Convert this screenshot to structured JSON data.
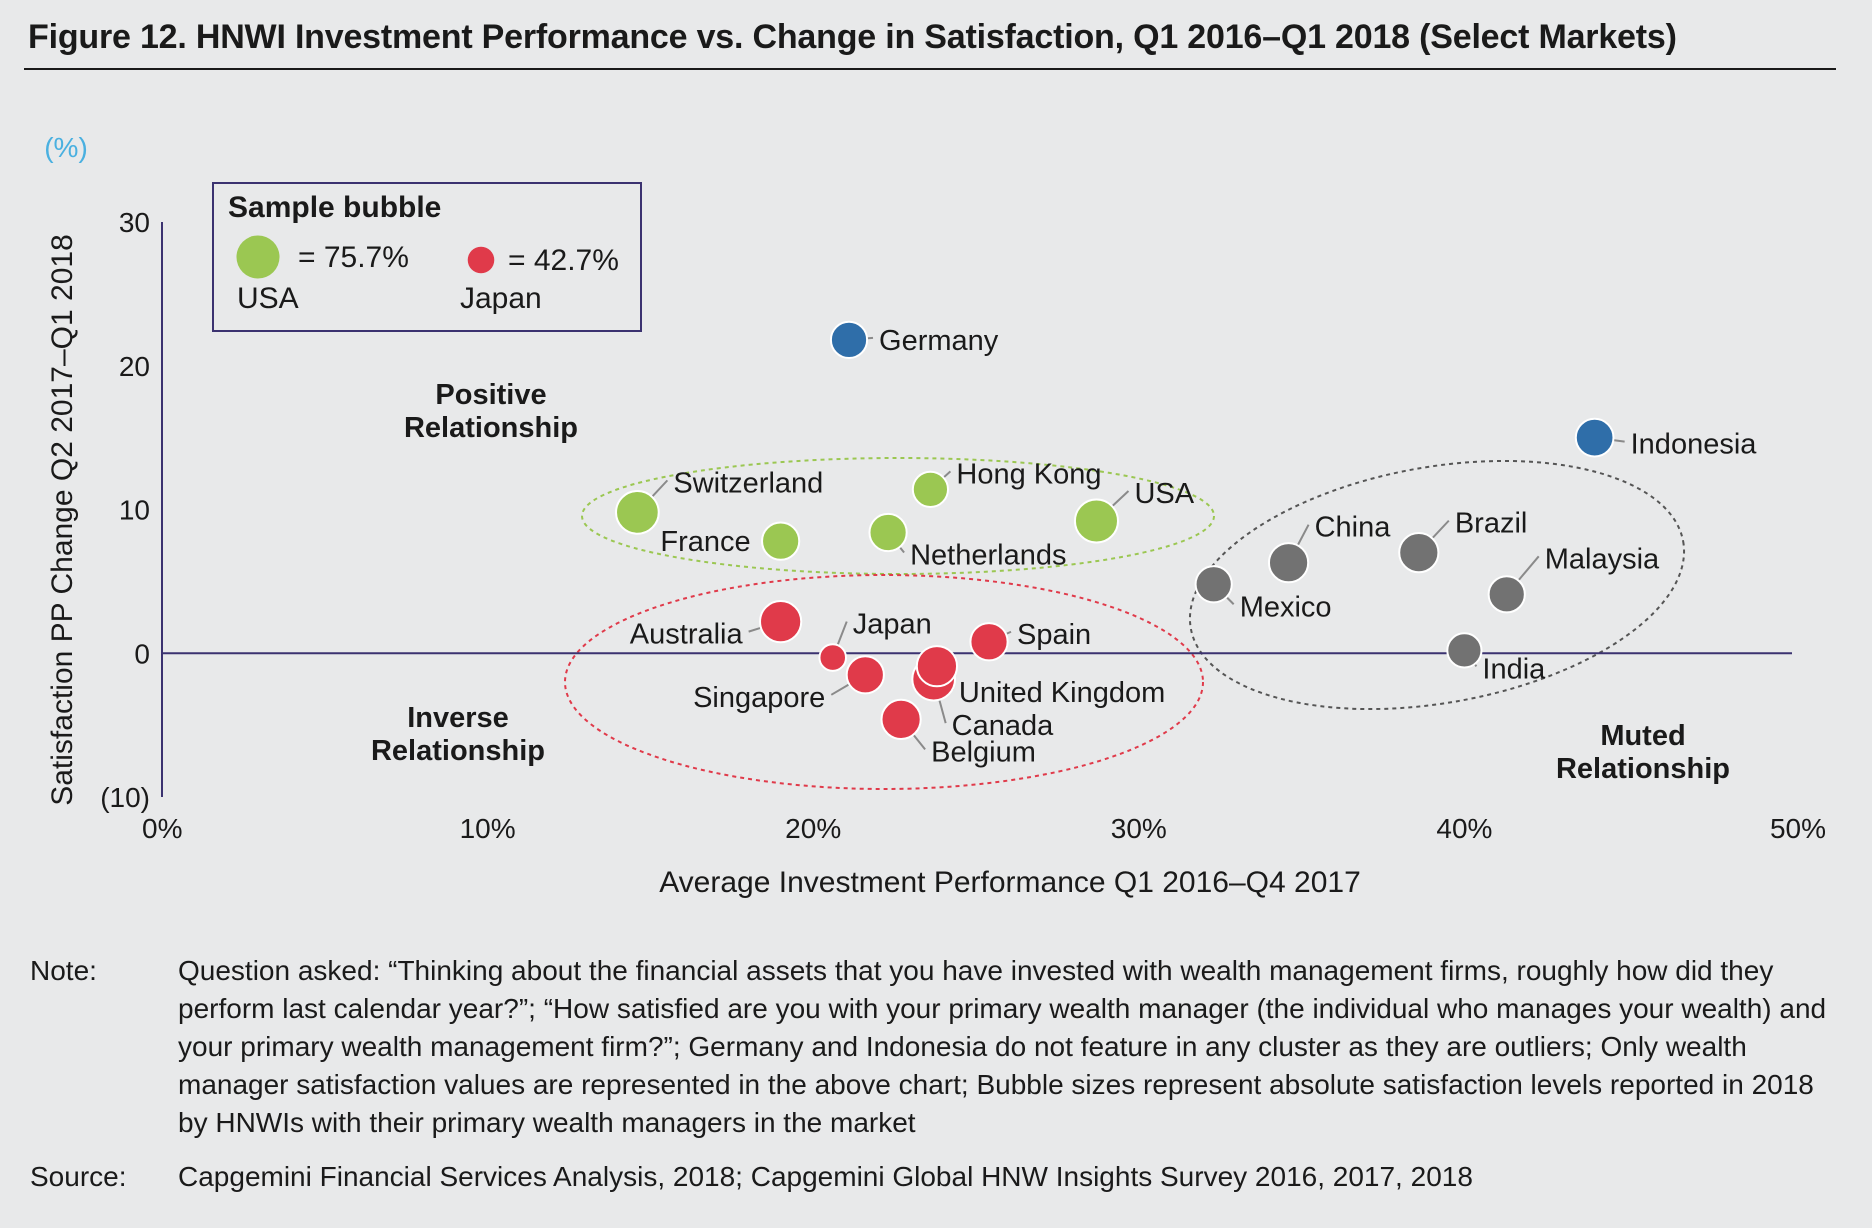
{
  "title": "Figure 12. HNWI Investment Performance vs. Change in Satisfaction, Q1 2016–Q1 2018 (Select Markets)",
  "chart_data": {
    "type": "scatter",
    "title": "Figure 12. HNWI Investment Performance vs. Change in Satisfaction, Q1 2016–Q1 2018 (Select Markets)",
    "xlabel": "Average Investment Performance Q1 2016–Q4 2017",
    "ylabel": "Satisfaction PP Change Q2 2017–Q1 2018",
    "y_unit": "(%)",
    "xlim": [
      0,
      50
    ],
    "ylim": [
      -10,
      30
    ],
    "x_ticks": [
      0,
      10,
      20,
      30,
      40,
      50
    ],
    "x_tick_labels": [
      "0%",
      "10%",
      "20%",
      "30%",
      "40%",
      "50%"
    ],
    "y_ticks": [
      -10,
      0,
      10,
      20,
      30
    ],
    "y_tick_labels": [
      "(10)",
      "0",
      "10",
      "20",
      "30"
    ],
    "grid": false,
    "colors": {
      "positive": "#9bc752",
      "inverse": "#e03a4a",
      "muted": "#727272",
      "outlier": "#2f6ea9"
    },
    "points": [
      {
        "name": "Germany",
        "x": 21.1,
        "y": 21.8,
        "size": 62,
        "group": "outlier"
      },
      {
        "name": "Indonesia",
        "x": 44.0,
        "y": 15.0,
        "size": 65,
        "group": "outlier"
      },
      {
        "name": "Switzerland",
        "x": 14.6,
        "y": 9.8,
        "size": 75,
        "group": "positive"
      },
      {
        "name": "France",
        "x": 19.0,
        "y": 7.8,
        "size": 64,
        "group": "positive"
      },
      {
        "name": "Hong Kong",
        "x": 23.6,
        "y": 11.4,
        "size": 60,
        "group": "positive"
      },
      {
        "name": "Netherlands",
        "x": 22.3,
        "y": 8.4,
        "size": 64,
        "group": "positive"
      },
      {
        "name": "USA",
        "x": 28.7,
        "y": 9.2,
        "size": 75.7,
        "group": "positive"
      },
      {
        "name": "Australia",
        "x": 19.0,
        "y": 2.2,
        "size": 72,
        "group": "inverse"
      },
      {
        "name": "Japan",
        "x": 20.6,
        "y": -0.3,
        "size": 42.7,
        "group": "inverse"
      },
      {
        "name": "Spain",
        "x": 25.4,
        "y": 0.8,
        "size": 64,
        "group": "inverse"
      },
      {
        "name": "Singapore",
        "x": 21.6,
        "y": -1.5,
        "size": 64,
        "group": "inverse"
      },
      {
        "name": "United Kingdom",
        "x": 23.8,
        "y": -0.9,
        "size": 70,
        "group": "inverse"
      },
      {
        "name": "Canada",
        "x": 23.7,
        "y": -1.8,
        "size": 75,
        "group": "inverse"
      },
      {
        "name": "Belgium",
        "x": 22.7,
        "y": -4.6,
        "size": 68,
        "group": "inverse"
      },
      {
        "name": "China",
        "x": 34.6,
        "y": 6.3,
        "size": 68,
        "group": "muted"
      },
      {
        "name": "Brazil",
        "x": 38.6,
        "y": 7.0,
        "size": 68,
        "group": "muted"
      },
      {
        "name": "Malaysia",
        "x": 41.3,
        "y": 4.1,
        "size": 62,
        "group": "muted"
      },
      {
        "name": "Mexico",
        "x": 32.3,
        "y": 4.8,
        "size": 62,
        "group": "muted"
      },
      {
        "name": "India",
        "x": 40.0,
        "y": 0.2,
        "size": 58,
        "group": "muted"
      }
    ],
    "annotations": {
      "positive": [
        "Positive",
        "Relationship"
      ],
      "inverse": [
        "Inverse",
        "Relationship"
      ],
      "muted": [
        "Muted",
        "Relationship"
      ]
    },
    "legend": {
      "title": "Sample bubble",
      "placement": "top-left",
      "items": [
        {
          "country": "USA",
          "value_label": "= 75.7%",
          "group": "positive"
        },
        {
          "country": "Japan",
          "value_label": "= 42.7%",
          "group": "inverse"
        }
      ]
    }
  },
  "note": {
    "label": "Note:",
    "text": "Question asked: “Thinking about the financial assets that you have invested with wealth management firms, roughly how did they perform last calendar year?”; “How satisfied are you with your primary wealth manager (the individual who manages your wealth) and your primary wealth management firm?”; Germany and Indonesia do not feature in any cluster as they are outliers; Only wealth manager satisfaction values are represented in the above chart; Bubble sizes represent absolute satisfaction levels reported in 2018 by HNWIs with their primary wealth managers in the market"
  },
  "source": {
    "label": "Source:",
    "text": "Capgemini Financial Services Analysis, 2018; Capgemini Global HNW Insights Survey 2016, 2017, 2018"
  }
}
